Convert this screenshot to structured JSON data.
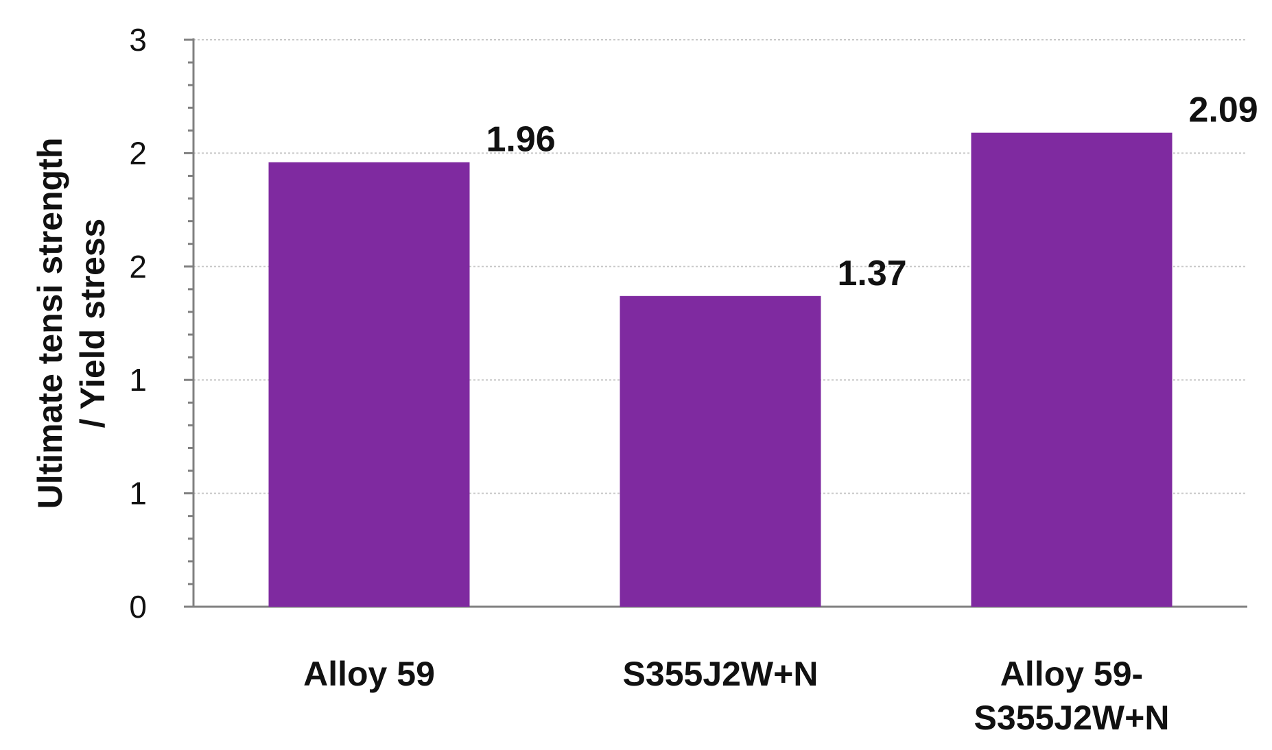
{
  "chart_data": {
    "type": "bar",
    "categories": [
      [
        "Alloy 59"
      ],
      [
        "S355J2W+N"
      ],
      [
        "Alloy 59-",
        "S355J2W+N"
      ]
    ],
    "values": [
      1.96,
      1.37,
      2.09
    ],
    "data_labels": [
      "1.96",
      "1.37",
      "2.09"
    ],
    "xlabel": "",
    "ylabel": [
      "Ultimate tensi strength",
      "/ Yield stress"
    ],
    "yticks": [
      "0",
      "1",
      "1",
      "2",
      "2",
      "3"
    ],
    "ylim": [
      0,
      2.5
    ],
    "grid": true,
    "legend": "none",
    "bar_color": "#7f2aa0"
  }
}
